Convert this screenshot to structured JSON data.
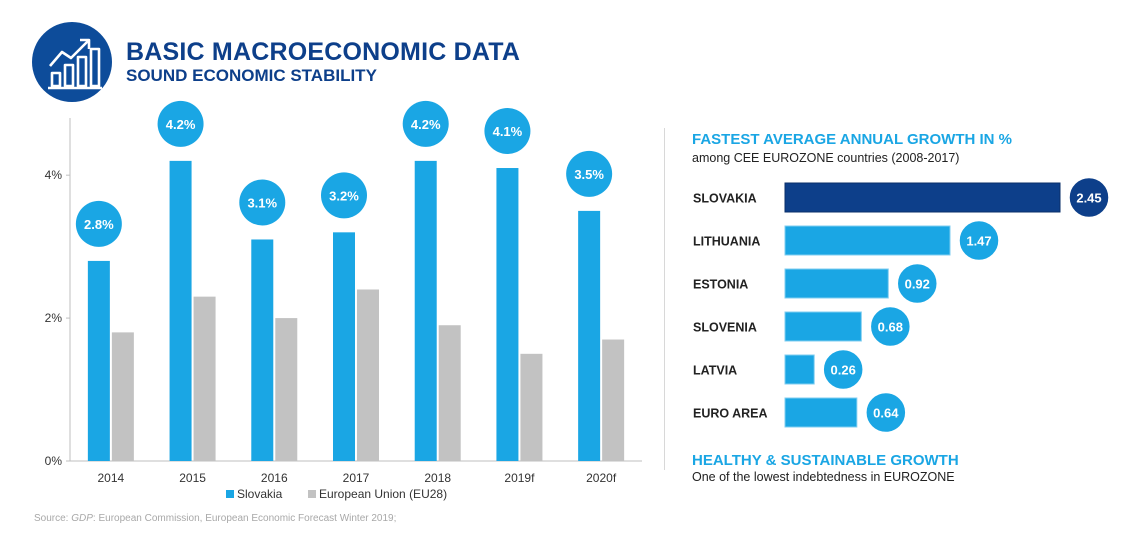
{
  "header": {
    "title": "BASIC MACROECONOMIC DATA",
    "subtitle": "SOUND ECONOMIC STABILITY",
    "logo_icon": "growth-chart-icon"
  },
  "colors": {
    "primary_blue": "#0d4c9a",
    "slovakia_blue": "#1aa6e4",
    "eu_gray": "#c2c2c2",
    "highlight_navy": "#0d3f8a"
  },
  "chart_data": [
    {
      "type": "bar",
      "categories": [
        "2014",
        "2015",
        "2016",
        "2017",
        "2018",
        "2019f",
        "2020f"
      ],
      "series": [
        {
          "name": "Slovakia",
          "values": [
            2.8,
            4.2,
            3.1,
            3.2,
            4.2,
            4.1,
            3.5
          ]
        },
        {
          "name": "European Union (EU28)",
          "values": [
            1.8,
            2.3,
            2.0,
            2.4,
            1.9,
            1.5,
            1.7
          ]
        }
      ],
      "data_labels": [
        "2.8%",
        "4.2%",
        "3.1%",
        "3.2%",
        "4.2%",
        "4.1%",
        "3.5%"
      ],
      "ylim": [
        0,
        4.8
      ],
      "yticks": [
        "0%",
        "2%",
        "4%"
      ],
      "ytick_values": [
        0,
        2,
        4
      ],
      "legend_position": "bottom",
      "grid": false
    },
    {
      "type": "bar",
      "orientation": "horizontal",
      "title": "FASTEST AVERAGE ANNUAL GROWTH IN %",
      "subtitle": "among CEE EUROZONE countries (2008-2017)",
      "categories": [
        "SLOVAKIA",
        "LITHUANIA",
        "ESTONIA",
        "SLOVENIA",
        "LATVIA",
        "EURO AREA"
      ],
      "values": [
        2.45,
        1.47,
        0.92,
        0.68,
        0.26,
        0.64
      ],
      "data_labels": [
        "2.45",
        "1.47",
        "0.92",
        "0.68",
        "0.26",
        "0.64"
      ],
      "highlight": "SLOVAKIA"
    }
  ],
  "healthy": {
    "title": "HEALTHY & SUSTAINABLE GROWTH",
    "subtitle": "One of the lowest indebtedness in EUROZONE"
  },
  "source": {
    "prefix": "Source: ",
    "italic": "GDP",
    "text": ": European Commission, European Economic Forecast Winter 2019;"
  }
}
